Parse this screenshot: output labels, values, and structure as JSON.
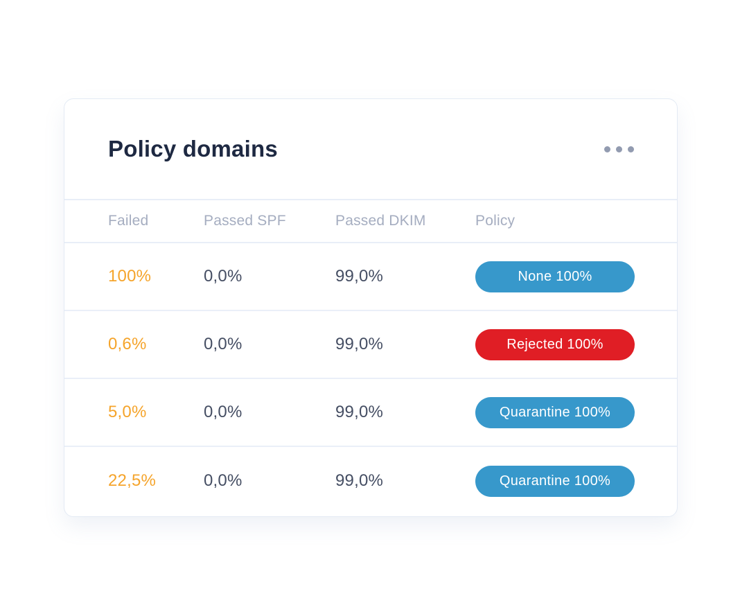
{
  "card": {
    "title": "Policy domains"
  },
  "menu": {
    "icon": "ellipsis-icon"
  },
  "table": {
    "columns": [
      "Failed",
      "Passed SPF",
      "Passed DKIM",
      "Policy"
    ],
    "rows": [
      {
        "failed": "100%",
        "passed_spf": "0,0%",
        "passed_dkim": "99,0%",
        "policy": {
          "label": "None 100%",
          "color": "#3798cb",
          "style": "background-color:#3798cb"
        }
      },
      {
        "failed": "0,6%",
        "passed_spf": "0,0%",
        "passed_dkim": "99,0%",
        "policy": {
          "label": "Rejected 100%",
          "color": "#e01e25",
          "style": "background-color:#e01e25"
        }
      },
      {
        "failed": "5,0%",
        "passed_spf": "0,0%",
        "passed_dkim": "99,0%",
        "policy": {
          "label": "Quarantine 100%",
          "color": "#3798cb",
          "style": "background-color:#3798cb"
        }
      },
      {
        "failed": "22,5%",
        "passed_spf": "0,0%",
        "passed_dkim": "99,0%",
        "policy": {
          "label": "Quarantine 100%",
          "color": "#3798cb",
          "style": "background-color:#3798cb"
        }
      }
    ]
  },
  "colors": {
    "failed_text": "#f5a42b",
    "value_text": "#454e63",
    "header_text": "#a5adc0",
    "title_text": "#1e2942",
    "badge_blue": "#3798cb",
    "badge_red": "#e01e25",
    "row_border": "#eaeff8",
    "card_border": "#e3eaf4"
  }
}
